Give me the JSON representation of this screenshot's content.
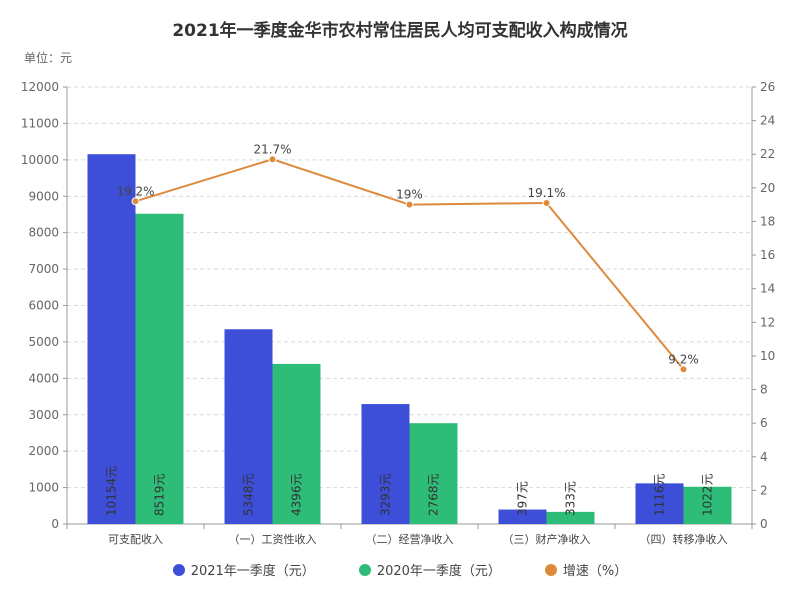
{
  "title": "2021年一季度金华市农村常住居民人均可支配收入构成情况",
  "unit": "单位：元",
  "colors": {
    "s2021": "#3d4fd8",
    "s2020": "#2ebd78",
    "growth": "#dd8a3c"
  },
  "legend": [
    {
      "label": "2021年一季度（元）",
      "color": "#3d4fd8"
    },
    {
      "label": "2020年一季度（元）",
      "color": "#2ebd78"
    },
    {
      "label": "增速（%）",
      "color": "#dd8a3c"
    }
  ],
  "chart_data": {
    "type": "bar",
    "title": "2021年一季度金华市农村常住居民人均可支配收入构成情况",
    "categories": [
      "可支配收入",
      "（一）工资性收入",
      "（二）经营净收入",
      "（三）财产净收入",
      "（四）转移净收入"
    ],
    "series": [
      {
        "name": "2021年一季度（元）",
        "type": "bar",
        "axis": "left",
        "values": [
          10154,
          5348,
          3293,
          397,
          1116
        ],
        "labels": [
          "10154元",
          "5348元",
          "3293元",
          "397元",
          "1116元"
        ]
      },
      {
        "name": "2020年一季度（元）",
        "type": "bar",
        "axis": "left",
        "values": [
          8519,
          4396,
          2768,
          333,
          1022
        ],
        "labels": [
          "8519元",
          "4396元",
          "2768元",
          "333元",
          "1022元"
        ]
      },
      {
        "name": "增速（%）",
        "type": "line",
        "axis": "right",
        "values": [
          19.2,
          21.7,
          19,
          19.1,
          9.2
        ],
        "labels": [
          "19.2%",
          "21.7%",
          "19%",
          "19.1%",
          "9.2%"
        ]
      }
    ],
    "y_left": {
      "min": 0,
      "max": 12000,
      "ticks": [
        0,
        1000,
        2000,
        3000,
        4000,
        5000,
        6000,
        7000,
        8000,
        9000,
        10000,
        11000,
        12000
      ]
    },
    "y_right": {
      "min": 0,
      "max": 26,
      "ticks": [
        0,
        2,
        4,
        6,
        8,
        10,
        12,
        14,
        16,
        18,
        20,
        22,
        24,
        26
      ]
    },
    "grid": "horizontal dashed",
    "legend_position": "bottom"
  }
}
